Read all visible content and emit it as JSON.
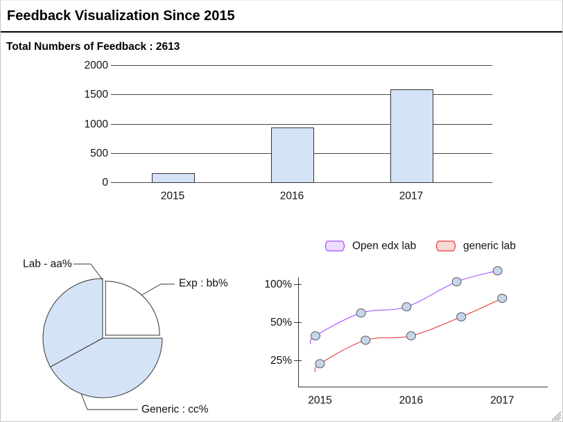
{
  "header": {
    "title": "Feedback Visualization Since 2015"
  },
  "summary": {
    "label": "Total Numbers of Feedback :",
    "count": "2613"
  },
  "icons": {
    "resize_grip": "resize-grip-icon"
  },
  "chart_data": [
    {
      "type": "bar",
      "categories": [
        "2015",
        "2016",
        "2017"
      ],
      "values": [
        150,
        940,
        1580
      ],
      "yticks": [
        0,
        500,
        1000,
        1500,
        2000
      ],
      "ylim": [
        0,
        2000
      ],
      "grid": true,
      "bar_color": "#d4e3f5"
    },
    {
      "type": "pie",
      "slices": [
        {
          "label": "Exp : bb%",
          "value": 25,
          "color": "#ffffff",
          "exploded": true
        },
        {
          "label": "Generic : cc%",
          "value": 42,
          "color": "#d4e3f5",
          "exploded": false
        },
        {
          "label": "Lab - aa%",
          "value": 33,
          "color": "#d4e3f5",
          "exploded": false
        }
      ]
    },
    {
      "type": "line",
      "xlim": [
        2014.76,
        2017.5
      ],
      "ylim": [
        15.5,
        113
      ],
      "yscale": "log",
      "x_ticks": [
        2015,
        2016,
        2017
      ],
      "y_ticks": [
        {
          "value": 100,
          "label": "100%"
        },
        {
          "value": 50,
          "label": "50%"
        },
        {
          "value": 25,
          "label": "25%"
        }
      ],
      "grid": false,
      "legend": "top",
      "marker_color": "#c5d6ec",
      "series": [
        {
          "name": "Open edx lab",
          "color": "#a64dff",
          "legend_fill": "#ecdcfd",
          "x": [
            2014.95,
            2015.45,
            2015.95,
            2016.5,
            2016.95
          ],
          "y": [
            39,
            59,
            66,
            104,
            127
          ]
        },
        {
          "name": "generic lab",
          "color": "#e53935",
          "legend_fill": "#fbd9d9",
          "x": [
            2015,
            2015.5,
            2016,
            2016.55,
            2017
          ],
          "y": [
            23.5,
            36,
            39,
            55,
            77
          ]
        }
      ]
    }
  ]
}
